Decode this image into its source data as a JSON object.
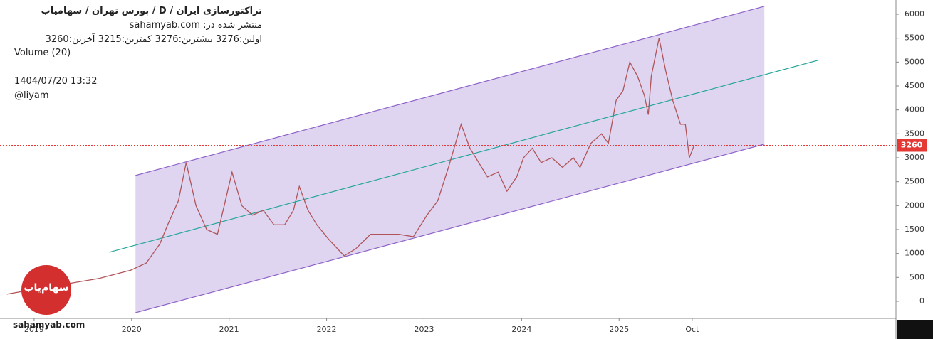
{
  "chart_data": {
    "type": "line",
    "title": "تراکتورسازی ایران  /  D  /  بورس تهران / سهامیاب",
    "published": "منتشر شده در: sahamyab.com",
    "ohlc_text": "اولین:3276  بیشترین:3276  کمترین:3215  آخرین:3260",
    "indicator": "Volume (20)",
    "timestamp": "1404/07/20 13:32",
    "author": "@liyam",
    "watermark": "sahamyab.com",
    "logo_text": "سهام‌یاب",
    "xlim": [
      2018.65,
      2027.84
    ],
    "ylim": [
      -357,
      6297
    ],
    "xticks": [
      {
        "value": 2019,
        "label": "2019"
      },
      {
        "value": 2020,
        "label": "2020"
      },
      {
        "value": 2021,
        "label": "2021"
      },
      {
        "value": 2022,
        "label": "2022"
      },
      {
        "value": 2023,
        "label": "2023"
      },
      {
        "value": 2024,
        "label": "2024"
      },
      {
        "value": 2025,
        "label": "2025"
      },
      {
        "value": 2025.75,
        "label": "Oct"
      }
    ],
    "yticks": [
      0,
      500,
      1000,
      1500,
      2000,
      2500,
      3000,
      3500,
      4000,
      4500,
      5000,
      5500,
      6000
    ],
    "x": [
      2018.72,
      2019.0,
      2019.38,
      2019.67,
      2019.99,
      2020.15,
      2020.29,
      2020.37,
      2020.48,
      2020.56,
      2020.66,
      2020.77,
      2020.88,
      2020.95,
      2021.03,
      2021.13,
      2021.24,
      2021.35,
      2021.46,
      2021.57,
      2021.66,
      2021.72,
      2021.81,
      2021.9,
      2022.02,
      2022.18,
      2022.3,
      2022.45,
      2022.59,
      2022.74,
      2022.89,
      2023.03,
      2023.14,
      2023.25,
      2023.38,
      2023.47,
      2023.56,
      2023.65,
      2023.76,
      2023.85,
      2023.95,
      2024.02,
      2024.11,
      2024.2,
      2024.31,
      2024.42,
      2024.53,
      2024.6,
      2024.71,
      2024.82,
      2024.89,
      2024.97,
      2025.04,
      2025.11,
      2025.19,
      2025.26,
      2025.3,
      2025.33,
      2025.41,
      2025.48,
      2025.55,
      2025.63,
      2025.68,
      2025.72,
      2025.77
    ],
    "series": [
      {
        "name": "Price",
        "color": "#b0545a",
        "values": [
          150,
          250,
          380,
          480,
          650,
          800,
          1200,
          1600,
          2100,
          2900,
          2000,
          1500,
          1400,
          2000,
          2700,
          2000,
          1800,
          1900,
          1600,
          1600,
          1900,
          2400,
          1900,
          1600,
          1300,
          950,
          1100,
          1400,
          1400,
          1400,
          1350,
          1800,
          2100,
          2800,
          3700,
          3200,
          2900,
          2600,
          2700,
          2300,
          2600,
          3000,
          3200,
          2900,
          3000,
          2800,
          3000,
          2800,
          3300,
          3500,
          3300,
          4200,
          4400,
          5000,
          4700,
          4300,
          3900,
          4700,
          5500,
          4800,
          4200,
          3700,
          3700,
          3000,
          3260
        ]
      }
    ],
    "last_price": 3260,
    "last_price_label": "3260",
    "last_price_color": "#e53935",
    "channel": {
      "color": "#8e63c9",
      "fill": "rgba(126,87,194,0.25)",
      "x": [
        2020.04,
        2026.49
      ],
      "upper": [
        2630,
        6166
      ],
      "lower": [
        -238,
        3284
      ]
    },
    "trendline": {
      "color": "#26a69a",
      "x": [
        2019.77,
        2027.04
      ],
      "y": [
        1025,
        5037
      ]
    }
  }
}
